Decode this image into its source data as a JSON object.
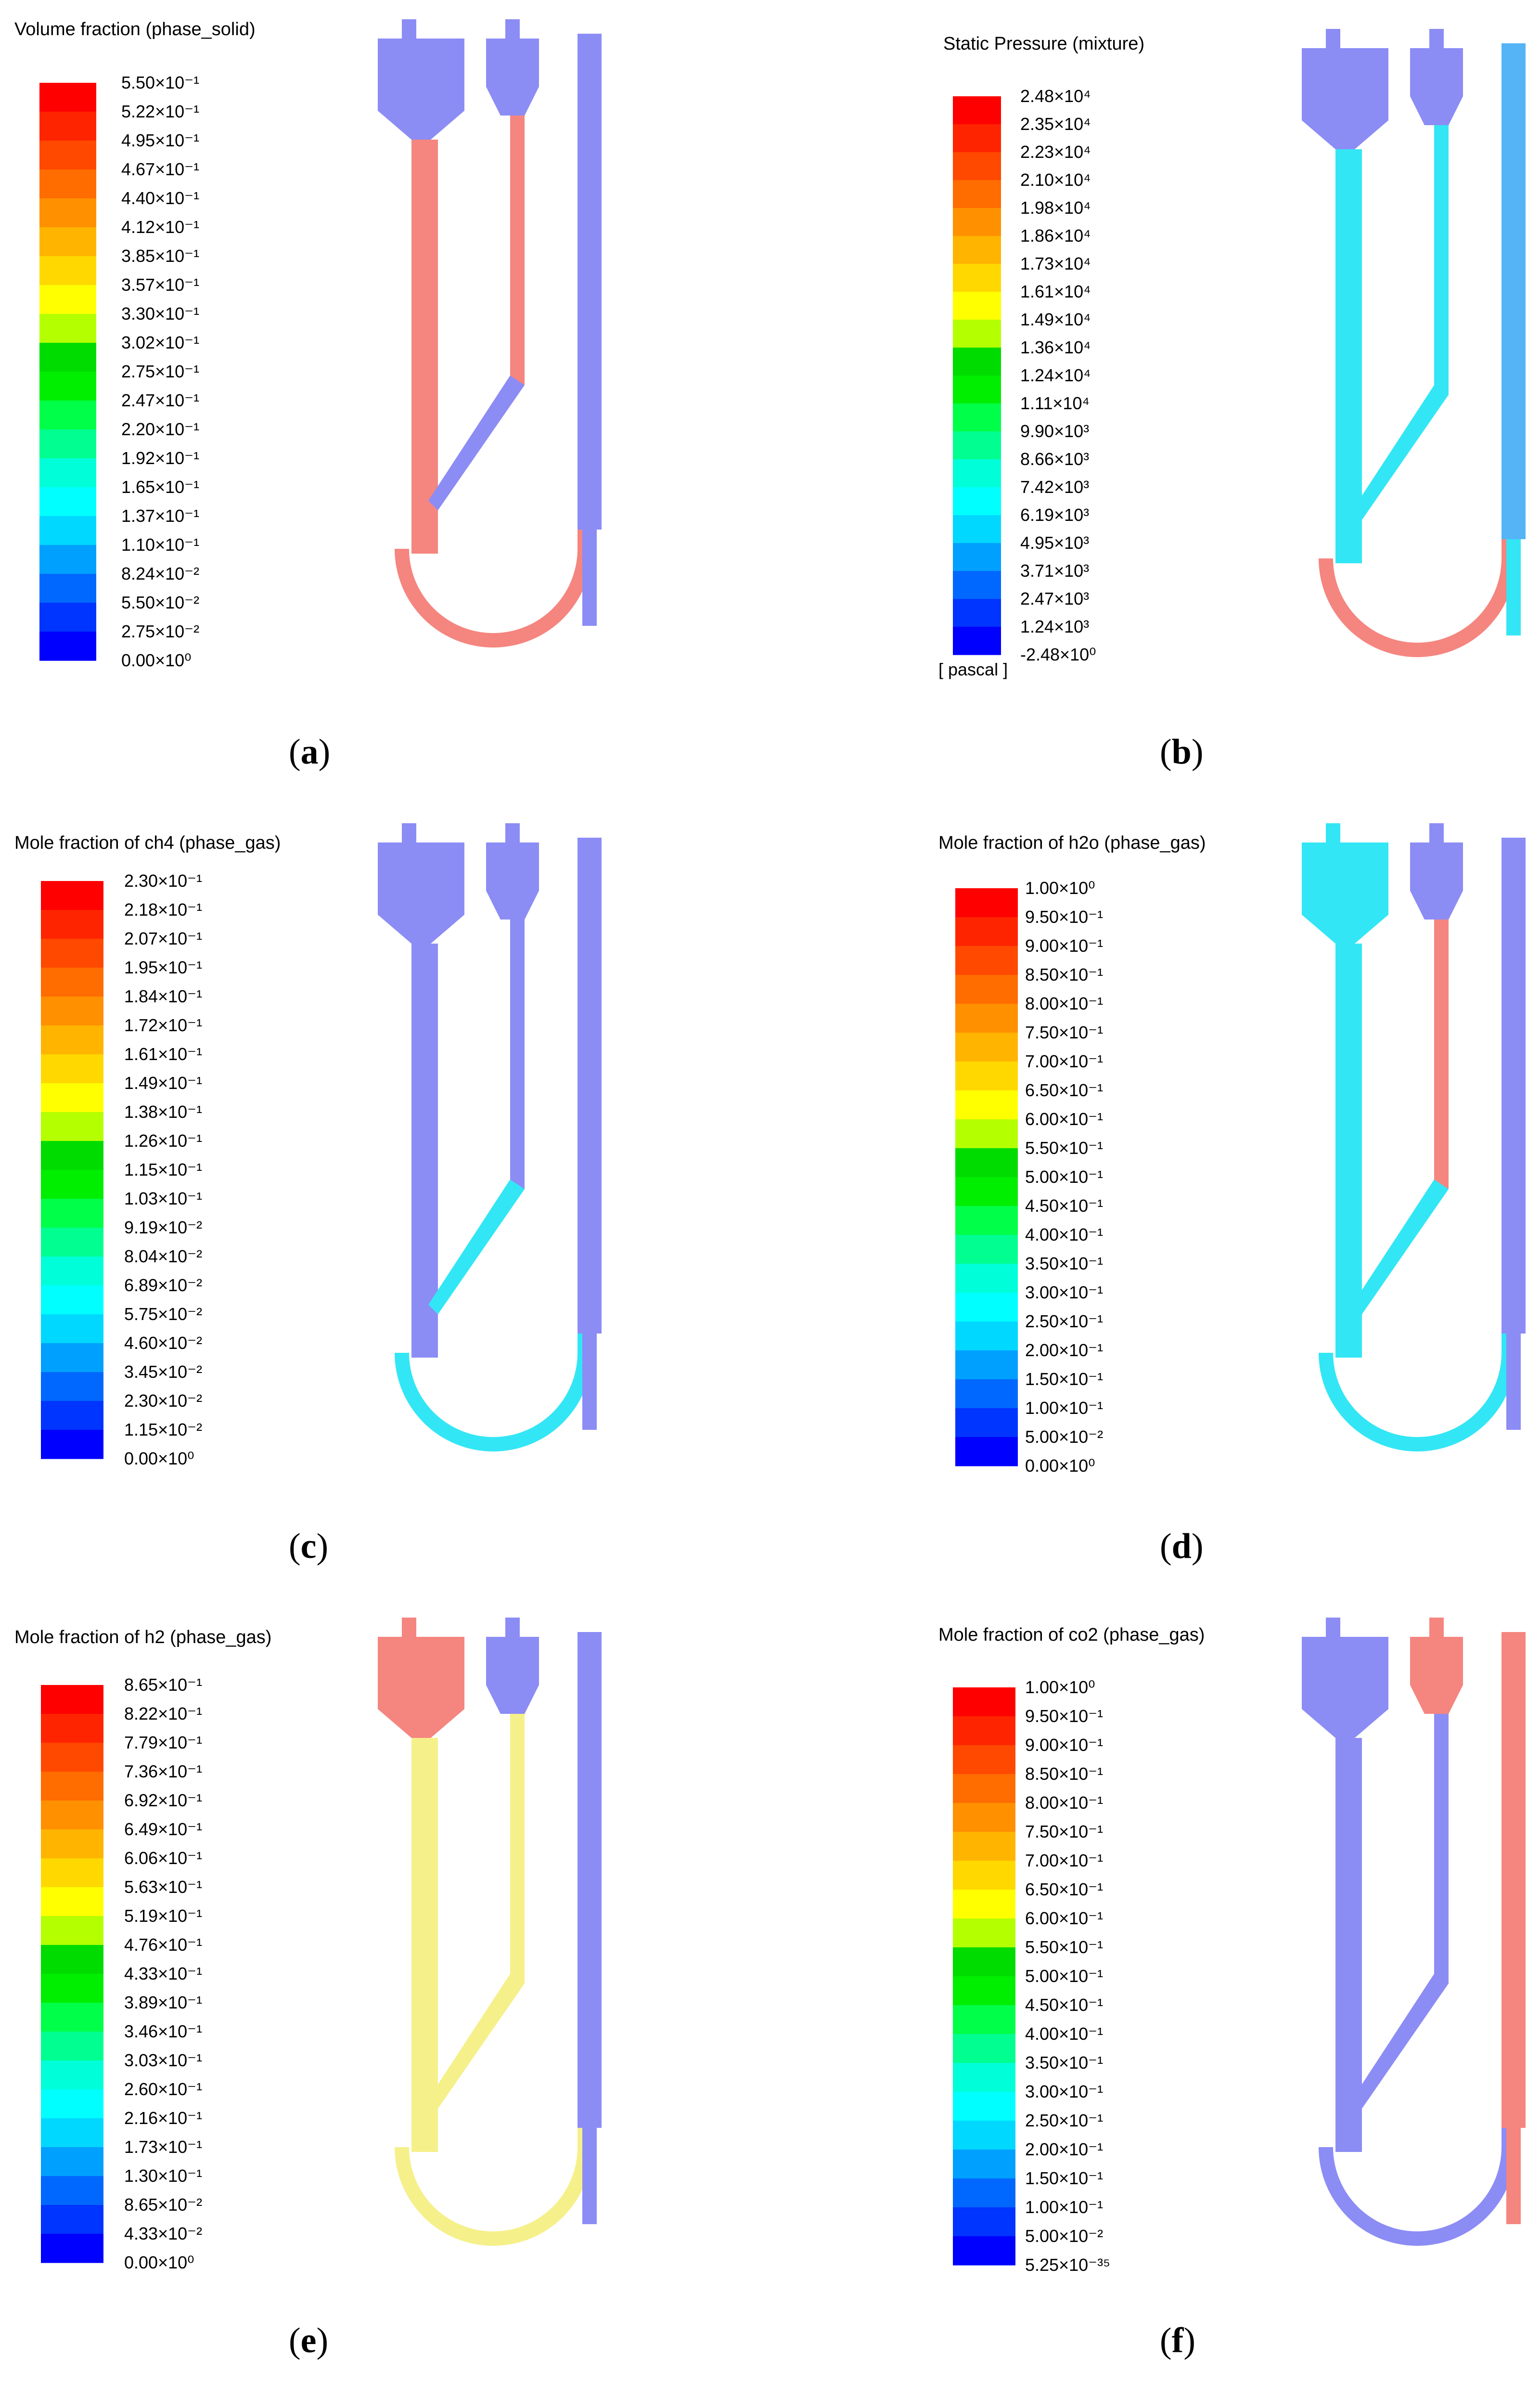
{
  "panels": [
    {
      "id": "a",
      "title": "Volume fraction (phase_solid)",
      "unit": "",
      "caption": "a",
      "labels": [
        "5.50×10⁻¹",
        "5.22×10⁻¹",
        "4.95×10⁻¹",
        "4.67×10⁻¹",
        "4.40×10⁻¹",
        "4.12×10⁻¹",
        "3.85×10⁻¹",
        "3.57×10⁻¹",
        "3.30×10⁻¹",
        "3.02×10⁻¹",
        "2.75×10⁻¹",
        "2.47×10⁻¹",
        "2.20×10⁻¹",
        "1.92×10⁻¹",
        "1.65×10⁻¹",
        "1.37×10⁻¹",
        "1.10×10⁻¹",
        "8.24×10⁻²",
        "5.50×10⁻²",
        "2.75×10⁻²",
        "0.00×10⁰"
      ],
      "fills": {
        "hopper1": "#8c8cf5",
        "riser": "#f5857f",
        "hopper2": "#8c8cf5",
        "downcomer": "#f5857f",
        "diag": "#8c8cf5",
        "right": "#8c8cf5",
        "loop": "#f5857f",
        "outlet": "#8c8cf5"
      }
    },
    {
      "id": "b",
      "title": "Static Pressure (mixture)",
      "unit": "[ pascal ]",
      "caption": "b",
      "labels": [
        "2.48×10⁴",
        "2.35×10⁴",
        "2.23×10⁴",
        "2.10×10⁴",
        "1.98×10⁴",
        "1.86×10⁴",
        "1.73×10⁴",
        "1.61×10⁴",
        "1.49×10⁴",
        "1.36×10⁴",
        "1.24×10⁴",
        "1.11×10⁴",
        "9.90×10³",
        "8.66×10³",
        "7.42×10³",
        "6.19×10³",
        "4.95×10³",
        "3.71×10³",
        "2.47×10³",
        "1.24×10³",
        "-2.48×10⁰"
      ],
      "fills": {
        "hopper1": "#8c8cf5",
        "riser": "#33e6f5",
        "hopper2": "#8c8cf5",
        "downcomer": "#33e6f5",
        "diag": "#33e6f5",
        "right": "#55b4f5",
        "loop": "#f5857f",
        "outlet": "#33e6f5"
      }
    },
    {
      "id": "c",
      "title": "Mole fraction of ch4 (phase_gas)",
      "unit": "",
      "caption": "c",
      "labels": [
        "2.30×10⁻¹",
        "2.18×10⁻¹",
        "2.07×10⁻¹",
        "1.95×10⁻¹",
        "1.84×10⁻¹",
        "1.72×10⁻¹",
        "1.61×10⁻¹",
        "1.49×10⁻¹",
        "1.38×10⁻¹",
        "1.26×10⁻¹",
        "1.15×10⁻¹",
        "1.03×10⁻¹",
        "9.19×10⁻²",
        "8.04×10⁻²",
        "6.89×10⁻²",
        "5.75×10⁻²",
        "4.60×10⁻²",
        "3.45×10⁻²",
        "2.30×10⁻²",
        "1.15×10⁻²",
        "0.00×10⁰"
      ],
      "fills": {
        "hopper1": "#8c8cf5",
        "riser": "#8c8cf5",
        "hopper2": "#8c8cf5",
        "downcomer": "#8c8cf5",
        "diag": "#33e6f5",
        "right": "#8c8cf5",
        "loop": "#33e6f5",
        "outlet": "#8c8cf5"
      }
    },
    {
      "id": "d",
      "title": "Mole fraction of h2o (phase_gas)",
      "unit": "",
      "caption": "d",
      "labels": [
        "1.00×10⁰",
        "9.50×10⁻¹",
        "9.00×10⁻¹",
        "8.50×10⁻¹",
        "8.00×10⁻¹",
        "7.50×10⁻¹",
        "7.00×10⁻¹",
        "6.50×10⁻¹",
        "6.00×10⁻¹",
        "5.50×10⁻¹",
        "5.00×10⁻¹",
        "4.50×10⁻¹",
        "4.00×10⁻¹",
        "3.50×10⁻¹",
        "3.00×10⁻¹",
        "2.50×10⁻¹",
        "2.00×10⁻¹",
        "1.50×10⁻¹",
        "1.00×10⁻¹",
        "5.00×10⁻²",
        "0.00×10⁰"
      ],
      "fills": {
        "hopper1": "#33e6f5",
        "riser": "#33e6f5",
        "hopper2": "#8c8cf5",
        "downcomer": "#f5857f",
        "diag": "#33e6f5",
        "right": "#8c8cf5",
        "loop": "#33e6f5",
        "outlet": "#8c8cf5"
      }
    },
    {
      "id": "e",
      "title": "Mole fraction of h2 (phase_gas)",
      "unit": "",
      "caption": "e",
      "labels": [
        "8.65×10⁻¹",
        "8.22×10⁻¹",
        "7.79×10⁻¹",
        "7.36×10⁻¹",
        "6.92×10⁻¹",
        "6.49×10⁻¹",
        "6.06×10⁻¹",
        "5.63×10⁻¹",
        "5.19×10⁻¹",
        "4.76×10⁻¹",
        "4.33×10⁻¹",
        "3.89×10⁻¹",
        "3.46×10⁻¹",
        "3.03×10⁻¹",
        "2.60×10⁻¹",
        "2.16×10⁻¹",
        "1.73×10⁻¹",
        "1.30×10⁻¹",
        "8.65×10⁻²",
        "4.33×10⁻²",
        "0.00×10⁰"
      ],
      "fills": {
        "hopper1": "#f5857f",
        "riser": "#f5f08a",
        "hopper2": "#8c8cf5",
        "downcomer": "#f5f08a",
        "diag": "#f5f08a",
        "right": "#8c8cf5",
        "loop": "#f5f08a",
        "outlet": "#8c8cf5"
      }
    },
    {
      "id": "f",
      "title": "Mole fraction of co2 (phase_gas)",
      "unit": "",
      "caption": "f",
      "labels": [
        "1.00×10⁰",
        "9.50×10⁻¹",
        "9.00×10⁻¹",
        "8.50×10⁻¹",
        "8.00×10⁻¹",
        "7.50×10⁻¹",
        "7.00×10⁻¹",
        "6.50×10⁻¹",
        "6.00×10⁻¹",
        "5.50×10⁻¹",
        "5.00×10⁻¹",
        "4.50×10⁻¹",
        "4.00×10⁻¹",
        "3.50×10⁻¹",
        "3.00×10⁻¹",
        "2.50×10⁻¹",
        "2.00×10⁻¹",
        "1.50×10⁻¹",
        "1.00×10⁻¹",
        "5.00×10⁻²",
        "5.25×10⁻³⁵"
      ],
      "fills": {
        "hopper1": "#8c8cf5",
        "riser": "#8c8cf5",
        "hopper2": "#f5857f",
        "downcomer": "#8c8cf5",
        "diag": "#8c8cf5",
        "right": "#f5857f",
        "loop": "#8c8cf5",
        "outlet": "#f5857f"
      }
    }
  ],
  "colormap": [
    "#ff0000",
    "#ff2400",
    "#ff4800",
    "#ff6c00",
    "#ff9000",
    "#ffb400",
    "#ffd800",
    "#ffff00",
    "#b4ff00",
    "#00dc00",
    "#00e600",
    "#00ee00",
    "#00ff48",
    "#00ff90",
    "#00ffd8",
    "#00ffff",
    "#00d8ff",
    "#00a0ff",
    "#0068ff",
    "#0034ff",
    "#0000ff"
  ]
}
